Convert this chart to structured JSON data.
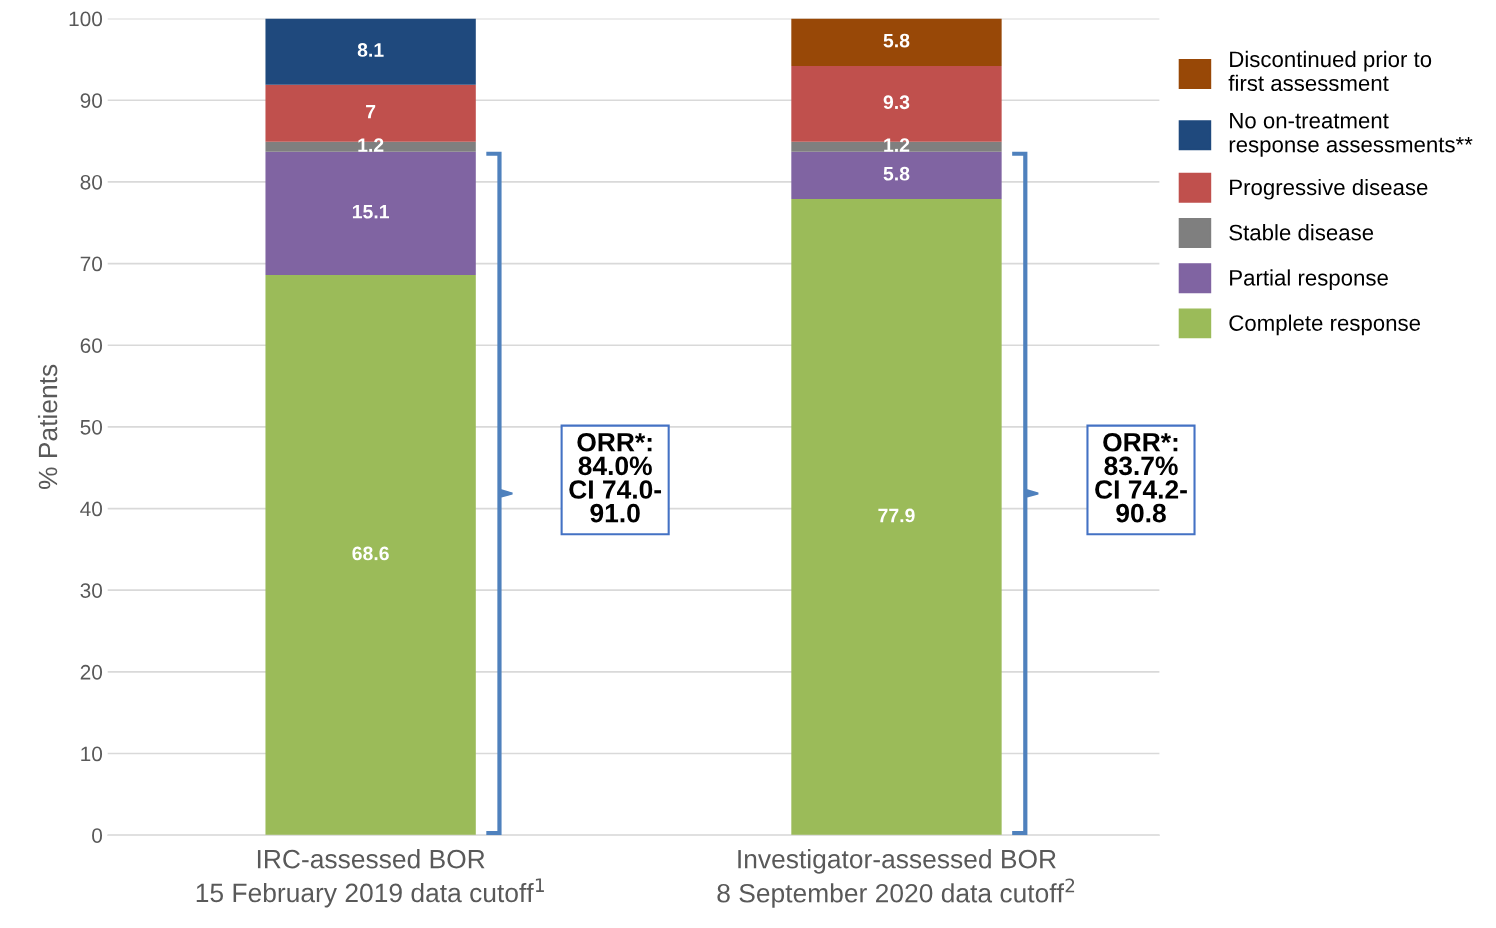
{
  "chart_data": {
    "type": "bar",
    "stacked": true,
    "ylabel": "% Patients",
    "categories": [
      "IRC-assessed BOR\n15 February 2019 data cutoff$^{1}$",
      "Investigator-assessed BOR\n8 September 2020 data cutoff$^{2}$"
    ],
    "series": [
      {
        "name": "Complete response",
        "color": "#9bbb59",
        "values": [
          68.6,
          77.9
        ]
      },
      {
        "name": "Partial response",
        "color": "#8064a2",
        "values": [
          15.1,
          5.8
        ]
      },
      {
        "name": "Stable disease",
        "color": "#7f7f7f",
        "values": [
          1.2,
          1.2
        ]
      },
      {
        "name": "Progressive disease",
        "color": "#c0504d",
        "values": [
          7,
          9.3
        ]
      },
      {
        "name": "No on-treatment\nresponse assessments**",
        "color": "#1f497d",
        "values": [
          8.1,
          null
        ]
      },
      {
        "name": "Discontinued prior to\nfirst assessment",
        "color": "#984807",
        "values": [
          null,
          5.8
        ]
      }
    ],
    "ylim": [
      0,
      100
    ],
    "yticks": [
      0,
      10,
      20,
      30,
      40,
      50,
      60,
      70,
      80,
      90,
      100
    ],
    "grid": "y",
    "legend": "right",
    "data_labels": true,
    "annotations": [
      "ORR*:\n84.0%\nCI 74.0-\n91.0",
      "ORR*:\n83.7%\nCI 74.2-\n90.8"
    ]
  }
}
